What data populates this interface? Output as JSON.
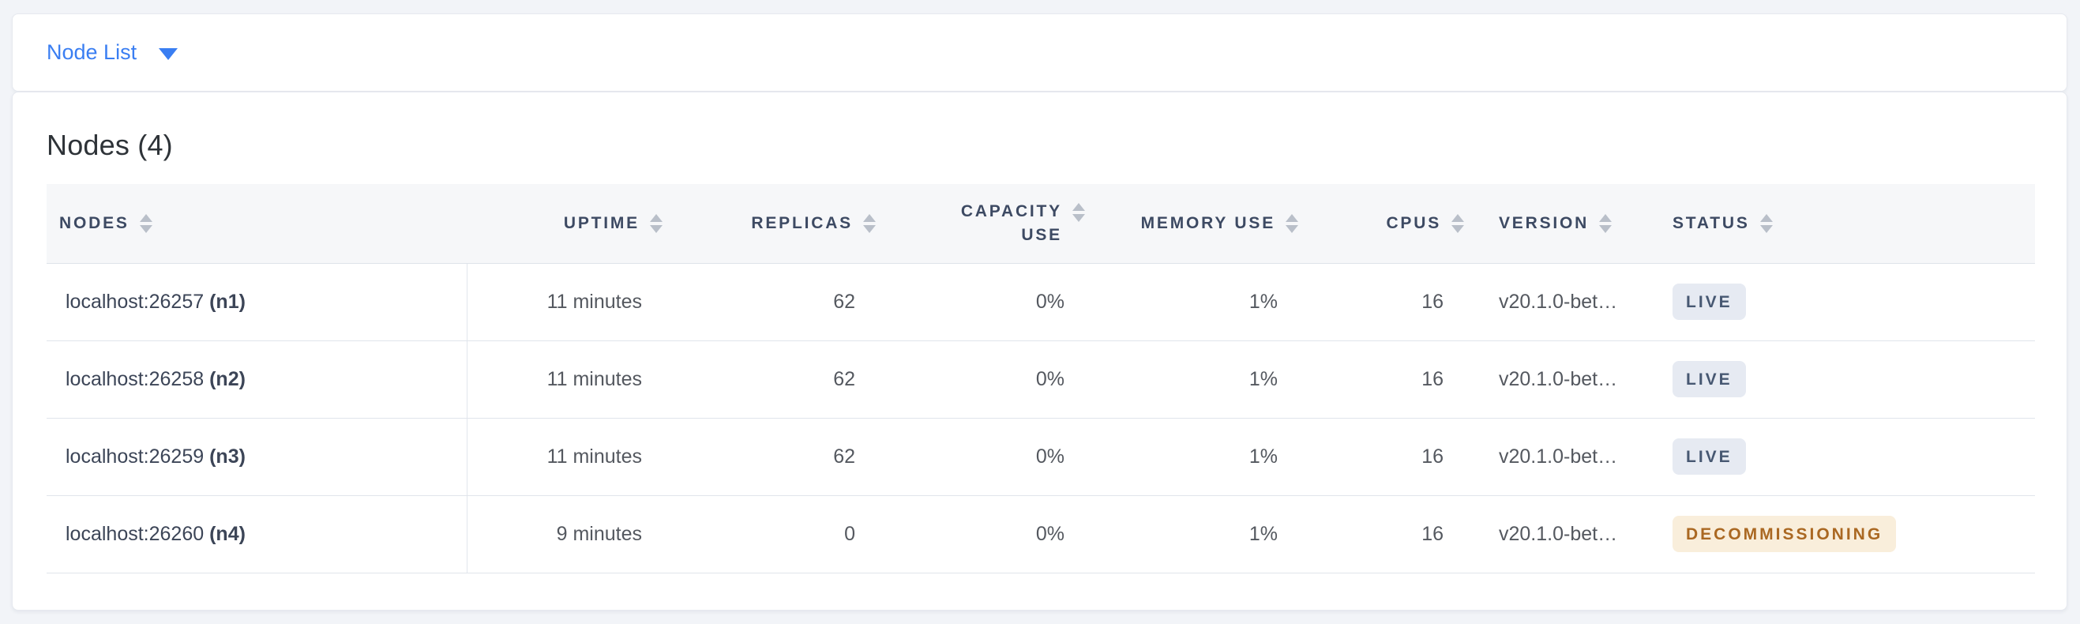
{
  "selector": {
    "label": "Node List"
  },
  "panel": {
    "title": "Nodes (4)"
  },
  "table": {
    "columns": [
      {
        "key": "node",
        "label": "NODES",
        "align": "left",
        "sortable": true
      },
      {
        "key": "uptime",
        "label": "UPTIME",
        "align": "right",
        "sortable": true
      },
      {
        "key": "replicas",
        "label": "REPLICAS",
        "align": "right",
        "sortable": true
      },
      {
        "key": "capacity",
        "label": "CAPACITY USE",
        "align": "right",
        "sortable": true
      },
      {
        "key": "memory",
        "label": "MEMORY USE",
        "align": "right",
        "sortable": true
      },
      {
        "key": "cpus",
        "label": "CPUS",
        "align": "right",
        "sortable": true
      },
      {
        "key": "version",
        "label": "VERSION",
        "align": "left",
        "sortable": true
      },
      {
        "key": "status",
        "label": "STATUS",
        "align": "left",
        "sortable": true
      }
    ],
    "rows": [
      {
        "node_address": "localhost:26257",
        "node_id": "(n1)",
        "uptime": "11 minutes",
        "replicas": "62",
        "capacity": "0%",
        "memory": "1%",
        "cpus": "16",
        "version": "v20.1.0-bet…",
        "status": {
          "label": "LIVE",
          "kind": "live"
        }
      },
      {
        "node_address": "localhost:26258",
        "node_id": "(n2)",
        "uptime": "11 minutes",
        "replicas": "62",
        "capacity": "0%",
        "memory": "1%",
        "cpus": "16",
        "version": "v20.1.0-bet…",
        "status": {
          "label": "LIVE",
          "kind": "live"
        }
      },
      {
        "node_address": "localhost:26259",
        "node_id": "(n3)",
        "uptime": "11 minutes",
        "replicas": "62",
        "capacity": "0%",
        "memory": "1%",
        "cpus": "16",
        "version": "v20.1.0-bet…",
        "status": {
          "label": "LIVE",
          "kind": "live"
        }
      },
      {
        "node_address": "localhost:26260",
        "node_id": "(n4)",
        "uptime": "9 minutes",
        "replicas": "0",
        "capacity": "0%",
        "memory": "1%",
        "cpus": "16",
        "version": "v20.1.0-bet…",
        "status": {
          "label": "DECOMMISSIONING",
          "kind": "decommissioning"
        }
      }
    ]
  },
  "colors": {
    "accent_blue": "#3a7ef2",
    "header_text": "#3d4a63",
    "live_badge_bg": "#e6eaf2",
    "live_badge_text": "#475872",
    "decommissioning_badge_bg": "#f9eedb",
    "decommissioning_badge_text": "#aa6822"
  }
}
